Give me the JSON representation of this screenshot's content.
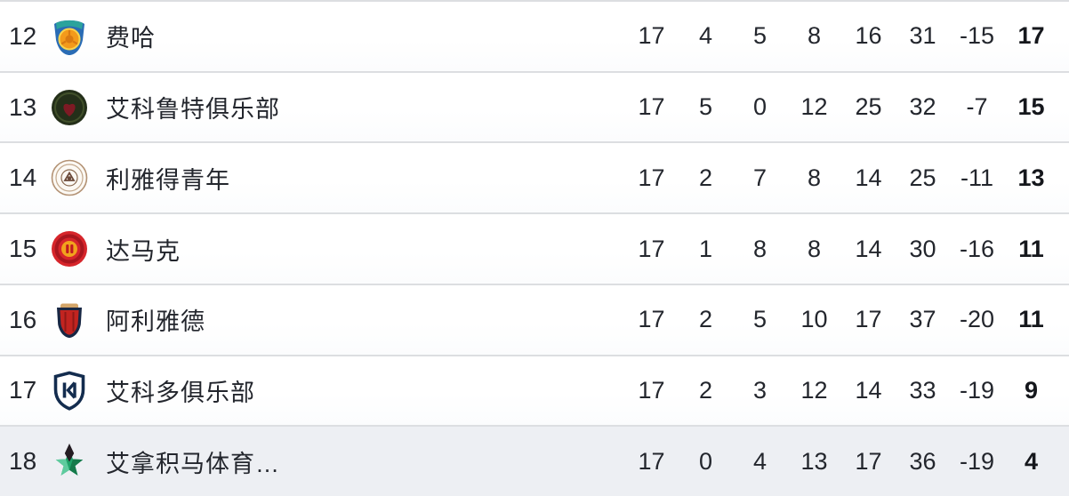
{
  "table": {
    "rows": [
      {
        "rank": "12",
        "team": "费哈",
        "badge": "al-fayha-crest",
        "stats": [
          "17",
          "4",
          "5",
          "8",
          "16",
          "31",
          "-15",
          "17"
        ],
        "highlighted": false
      },
      {
        "rank": "13",
        "team": "艾科鲁特俱乐部",
        "badge": "al-okhdood-crest",
        "stats": [
          "17",
          "5",
          "0",
          "12",
          "25",
          "32",
          "-7",
          "15"
        ],
        "highlighted": false
      },
      {
        "rank": "14",
        "team": "利雅得青年",
        "badge": "riyadh-youth-crest",
        "stats": [
          "17",
          "2",
          "7",
          "8",
          "14",
          "25",
          "-11",
          "13"
        ],
        "highlighted": false
      },
      {
        "rank": "15",
        "team": "达马克",
        "badge": "damac-crest",
        "stats": [
          "17",
          "1",
          "8",
          "8",
          "14",
          "30",
          "-16",
          "11"
        ],
        "highlighted": false
      },
      {
        "rank": "16",
        "team": "阿利雅德",
        "badge": "al-riyadh-crest",
        "stats": [
          "17",
          "2",
          "5",
          "10",
          "17",
          "37",
          "-20",
          "11"
        ],
        "highlighted": false
      },
      {
        "rank": "17",
        "team": "艾科多俱乐部",
        "badge": "al-kholood-crest",
        "stats": [
          "17",
          "2",
          "3",
          "12",
          "14",
          "33",
          "-19",
          "9"
        ],
        "highlighted": false
      },
      {
        "rank": "18",
        "team": "艾拿积马体育…",
        "badge": "al-najma-crest",
        "stats": [
          "17",
          "0",
          "4",
          "13",
          "17",
          "36",
          "-19",
          "4"
        ],
        "highlighted": true
      }
    ]
  },
  "colors": {
    "separator": "#dcdee1",
    "text": "#23262d",
    "points_text": "#15171c",
    "highlight_row_bg": "#edeff3"
  }
}
